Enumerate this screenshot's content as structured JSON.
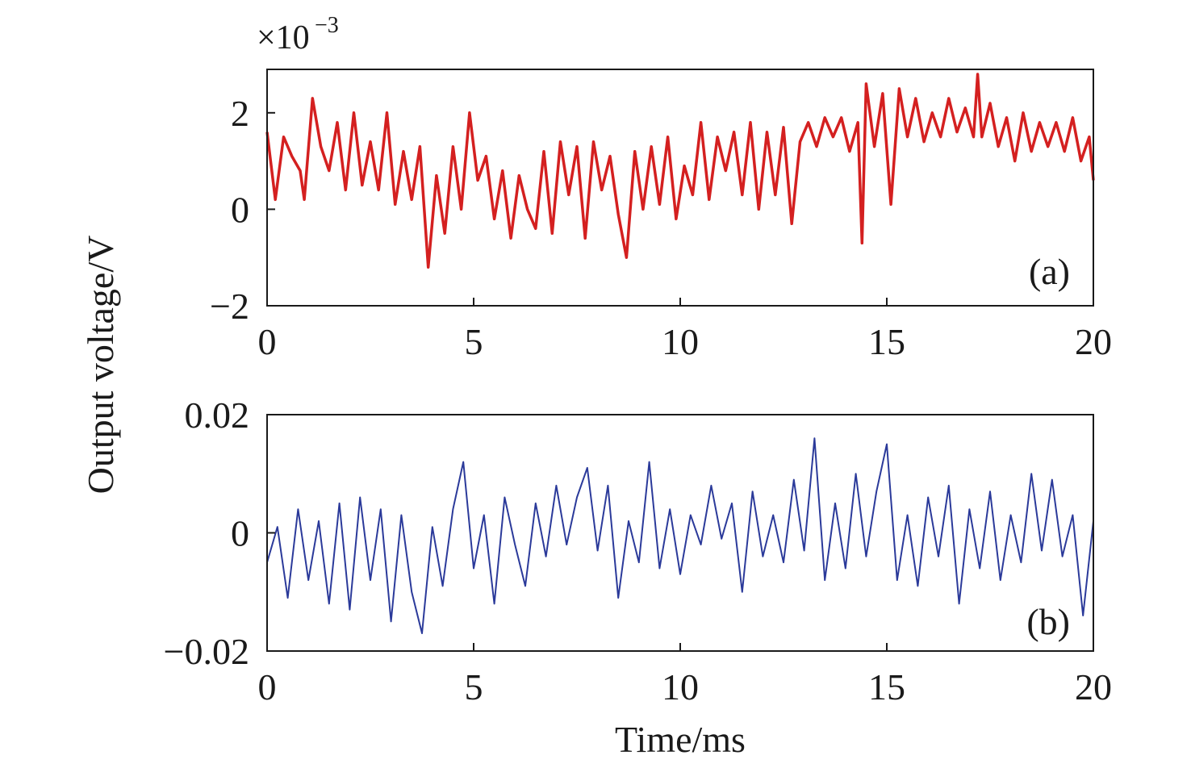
{
  "chart_data": [
    {
      "type": "line",
      "panel_label": "(a)",
      "multiplier": {
        "base": "×10",
        "exponent": "−3"
      },
      "xlim": [
        0,
        20
      ],
      "ylim": [
        -2,
        2.9
      ],
      "x_ticks": [
        0,
        5,
        10,
        15,
        20
      ],
      "x_tick_labels": [
        "0",
        "5",
        "10",
        "15",
        "20"
      ],
      "y_ticks": [
        -2,
        0,
        2
      ],
      "y_tick_labels": [
        "−2",
        "0",
        "2"
      ],
      "grid": false,
      "series": [
        {
          "color": "#d42020",
          "x": [
            0,
            0.2,
            0.4,
            0.6,
            0.8,
            0.9,
            1.1,
            1.3,
            1.5,
            1.7,
            1.9,
            2.1,
            2.3,
            2.5,
            2.7,
            2.9,
            3.1,
            3.3,
            3.5,
            3.7,
            3.9,
            4.1,
            4.3,
            4.5,
            4.7,
            4.9,
            5.1,
            5.3,
            5.5,
            5.7,
            5.9,
            6.1,
            6.3,
            6.5,
            6.7,
            6.9,
            7.1,
            7.3,
            7.5,
            7.7,
            7.9,
            8.1,
            8.3,
            8.5,
            8.7,
            8.9,
            9.1,
            9.3,
            9.5,
            9.7,
            9.9,
            10.1,
            10.3,
            10.5,
            10.7,
            10.9,
            11.1,
            11.3,
            11.5,
            11.7,
            11.9,
            12.1,
            12.3,
            12.5,
            12.7,
            12.9,
            13.1,
            13.3,
            13.5,
            13.7,
            13.9,
            14.1,
            14.3,
            14.4,
            14.5,
            14.7,
            14.9,
            15.1,
            15.3,
            15.5,
            15.7,
            15.9,
            16.1,
            16.3,
            16.5,
            16.7,
            16.9,
            17.1,
            17.2,
            17.3,
            17.5,
            17.7,
            17.9,
            18.1,
            18.3,
            18.5,
            18.7,
            18.9,
            19.1,
            19.3,
            19.5,
            19.7,
            19.9,
            20
          ],
          "y": [
            1.6,
            0.2,
            1.5,
            1.1,
            0.8,
            0.2,
            2.3,
            1.3,
            0.8,
            1.8,
            0.4,
            2.0,
            0.5,
            1.4,
            0.4,
            2.0,
            0.1,
            1.2,
            0.2,
            1.3,
            -1.2,
            0.7,
            -0.5,
            1.3,
            0.0,
            2.0,
            0.6,
            1.1,
            -0.2,
            0.8,
            -0.6,
            0.7,
            0.0,
            -0.4,
            1.2,
            -0.5,
            1.4,
            0.3,
            1.3,
            -0.6,
            1.4,
            0.4,
            1.1,
            -0.1,
            -1.0,
            1.2,
            0.0,
            1.3,
            0.1,
            1.5,
            -0.2,
            0.9,
            0.3,
            1.8,
            0.2,
            1.5,
            0.8,
            1.6,
            0.3,
            1.8,
            0.0,
            1.6,
            0.3,
            1.7,
            -0.3,
            1.4,
            1.8,
            1.3,
            1.9,
            1.5,
            1.9,
            1.2,
            1.8,
            -0.7,
            2.6,
            1.3,
            2.4,
            0.1,
            2.5,
            1.5,
            2.3,
            1.4,
            2.0,
            1.5,
            2.3,
            1.6,
            2.1,
            1.5,
            2.8,
            1.5,
            2.2,
            1.3,
            1.9,
            1.0,
            2.0,
            1.2,
            1.8,
            1.3,
            1.8,
            1.2,
            1.9,
            1.0,
            1.5,
            0.6
          ]
        }
      ]
    },
    {
      "type": "line",
      "panel_label": "(b)",
      "xlabel": "Time/ms",
      "xlim": [
        0,
        20
      ],
      "ylim": [
        -0.02,
        0.02
      ],
      "x_ticks": [
        0,
        5,
        10,
        15,
        20
      ],
      "x_tick_labels": [
        "0",
        "5",
        "10",
        "15",
        "20"
      ],
      "y_ticks": [
        -0.02,
        0,
        0.02
      ],
      "y_tick_labels": [
        "−0.02",
        "0",
        "0.02"
      ],
      "grid": false,
      "series": [
        {
          "color": "#2b3a9a",
          "x": [
            0,
            0.25,
            0.5,
            0.75,
            1.0,
            1.25,
            1.5,
            1.75,
            2.0,
            2.25,
            2.5,
            2.75,
            3.0,
            3.25,
            3.5,
            3.75,
            4.0,
            4.25,
            4.5,
            4.75,
            5.0,
            5.25,
            5.5,
            5.75,
            6.0,
            6.25,
            6.5,
            6.75,
            7.0,
            7.25,
            7.5,
            7.75,
            8.0,
            8.25,
            8.5,
            8.75,
            9.0,
            9.25,
            9.5,
            9.75,
            10.0,
            10.25,
            10.5,
            10.75,
            11.0,
            11.25,
            11.5,
            11.75,
            12.0,
            12.25,
            12.5,
            12.75,
            13.0,
            13.25,
            13.5,
            13.75,
            14.0,
            14.25,
            14.5,
            14.75,
            15.0,
            15.25,
            15.5,
            15.75,
            16.0,
            16.25,
            16.5,
            16.75,
            17.0,
            17.25,
            17.5,
            17.75,
            18.0,
            18.25,
            18.5,
            18.75,
            19.0,
            19.25,
            19.5,
            19.75,
            20
          ],
          "y": [
            -0.005,
            0.001,
            -0.011,
            0.004,
            -0.008,
            0.002,
            -0.012,
            0.005,
            -0.013,
            0.006,
            -0.008,
            0.004,
            -0.015,
            0.003,
            -0.01,
            -0.017,
            0.001,
            -0.009,
            0.004,
            0.012,
            -0.006,
            0.003,
            -0.012,
            0.006,
            -0.002,
            -0.009,
            0.005,
            -0.004,
            0.008,
            -0.002,
            0.006,
            0.011,
            -0.003,
            0.008,
            -0.011,
            0.002,
            -0.005,
            0.012,
            -0.006,
            0.004,
            -0.007,
            0.003,
            -0.002,
            0.008,
            -0.001,
            0.005,
            -0.01,
            0.007,
            -0.004,
            0.003,
            -0.005,
            0.009,
            -0.003,
            0.016,
            -0.008,
            0.005,
            -0.006,
            0.01,
            -0.004,
            0.007,
            0.015,
            -0.008,
            0.003,
            -0.009,
            0.006,
            -0.004,
            0.008,
            -0.012,
            0.004,
            -0.006,
            0.007,
            -0.008,
            0.003,
            -0.005,
            0.01,
            -0.003,
            0.009,
            -0.004,
            0.003,
            -0.014,
            0.002
          ]
        }
      ]
    }
  ],
  "ylabel": "Output voltage/V"
}
